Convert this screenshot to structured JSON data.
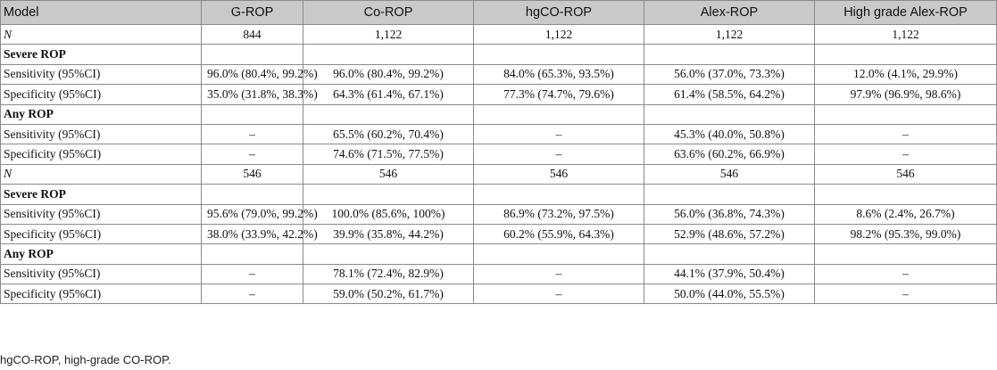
{
  "table": {
    "headers": [
      "Model",
      "G-ROP",
      "Co-ROP",
      "hgCO-ROP",
      "Alex-ROP",
      "High grade Alex-ROP"
    ],
    "rows": [
      {
        "kind": "n",
        "cells": [
          "N",
          "844",
          "1,122",
          "1,122",
          "1,122",
          "1,122"
        ]
      },
      {
        "kind": "section",
        "cells": [
          "Severe ROP",
          "",
          "",
          "",
          "",
          ""
        ]
      },
      {
        "kind": "data",
        "cells": [
          "Sensitivity (95%CI)",
          "96.0% (80.4%, 99.2%)",
          "96.0% (80.4%, 99.2%)",
          "84.0% (65.3%, 93.5%)",
          "56.0% (37.0%, 73.3%)",
          "12.0% (4.1%, 29.9%)"
        ]
      },
      {
        "kind": "data",
        "cells": [
          "Specificity (95%CI)",
          "35.0% (31.8%, 38.3%)",
          "64.3% (61.4%, 67.1%)",
          "77.3% (74.7%, 79.6%)",
          "61.4% (58.5%, 64.2%)",
          "97.9% (96.9%, 98.6%)"
        ]
      },
      {
        "kind": "section",
        "cells": [
          "Any ROP",
          "",
          "",
          "",
          "",
          ""
        ]
      },
      {
        "kind": "data",
        "cells": [
          "Sensitivity (95%CI)",
          "–",
          "65.5% (60.2%, 70.4%)",
          "–",
          "45.3% (40.0%, 50.8%)",
          "–"
        ]
      },
      {
        "kind": "data",
        "cells": [
          "Specificity (95%CI)",
          "–",
          "74.6% (71.5%, 77.5%)",
          "–",
          "63.6% (60.2%, 66.9%)",
          "–"
        ]
      },
      {
        "kind": "n",
        "cells": [
          "N",
          "546",
          "546",
          "546",
          "546",
          "546"
        ]
      },
      {
        "kind": "section",
        "cells": [
          "Severe ROP",
          "",
          "",
          "",
          "",
          ""
        ]
      },
      {
        "kind": "data",
        "cells": [
          "Sensitivity (95%CI)",
          "95.6% (79.0%, 99.2%)",
          "100.0% (85.6%, 100%)",
          "86.9% (73.2%, 97.5%)",
          "56.0% (36.8%, 74.3%)",
          "8.6% (2.4%, 26.7%)"
        ]
      },
      {
        "kind": "data",
        "cells": [
          "Specificity (95%CI)",
          "38.0% (33.9%, 42.2%)",
          "39.9% (35.8%, 44.2%)",
          "60.2% (55.9%, 64.3%)",
          "52.9% (48.6%, 57.2%)",
          "98.2% (95.3%, 99.0%)"
        ]
      },
      {
        "kind": "section",
        "cells": [
          "Any ROP",
          "",
          "",
          "",
          "",
          ""
        ]
      },
      {
        "kind": "data",
        "cells": [
          "Sensitivity (95%CI)",
          "–",
          "78.1% (72.4%, 82.9%)",
          "–",
          "44.1% (37.9%, 50.4%)",
          "–"
        ]
      },
      {
        "kind": "data",
        "cells": [
          "Specificity (95%CI)",
          "–",
          "59.0% (50.2%, 61.7%)",
          "–",
          "50.0% (44.0%, 55.5%)",
          "–"
        ]
      }
    ]
  },
  "footnote": "hgCO-ROP, high-grade CO-ROP."
}
